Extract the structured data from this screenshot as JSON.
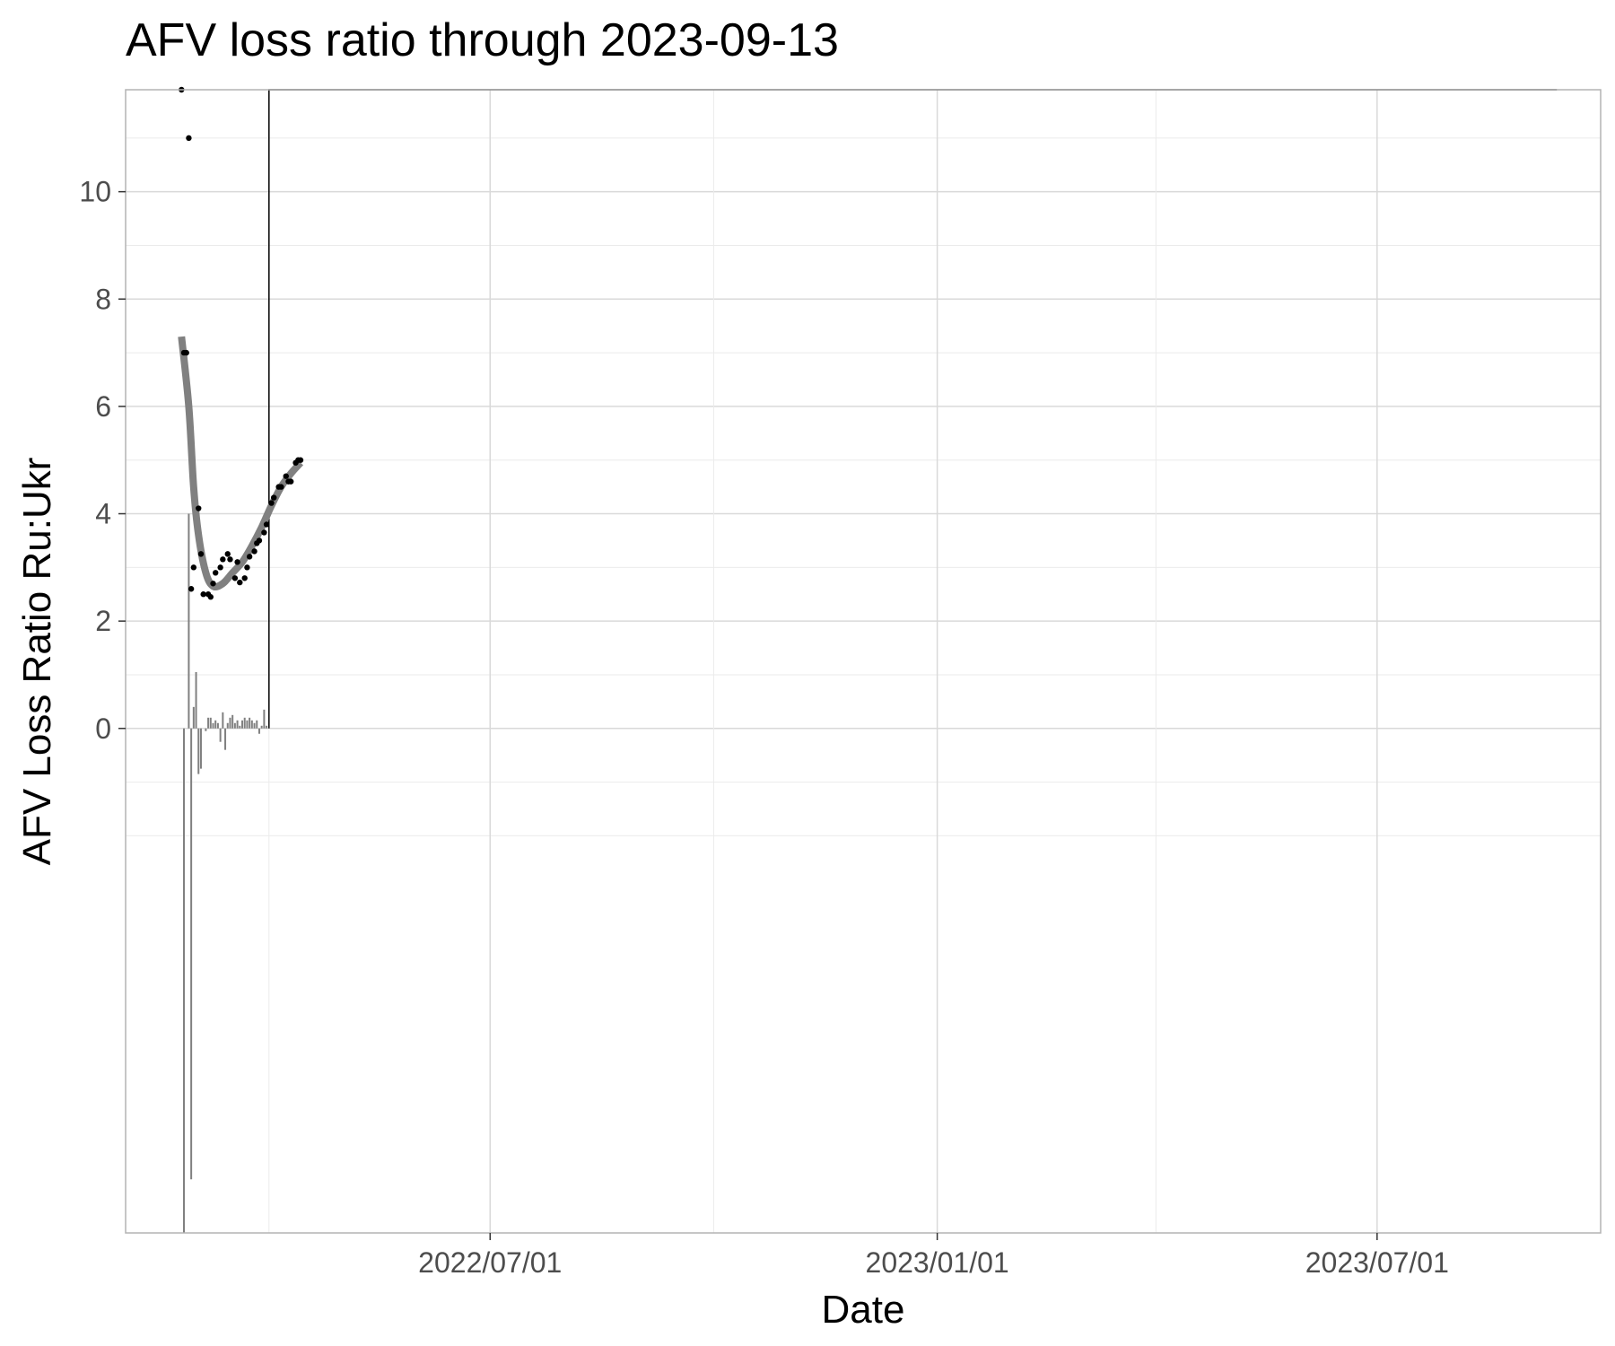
{
  "chart_data": {
    "type": "line",
    "title": "AFV loss ratio through 2023-09-13",
    "xlabel": "Date",
    "ylabel": "AFV Loss Ratio Ru:Ukr",
    "x_axis": {
      "type": "date",
      "range": [
        "2022-02-01",
        "2023-10-01"
      ],
      "ticks": [
        "2022/07/01",
        "2023/01/01",
        "2023/07/01"
      ],
      "tick_dates": [
        "2022-07-01",
        "2023-01-01",
        "2023-07-01"
      ],
      "minor_dates": [
        "2022-04-01",
        "2022-10-01",
        "2023-04-01",
        "2023-10-01"
      ]
    },
    "y_axis": {
      "range": [
        -9.4,
        11.9
      ],
      "ticks": [
        0,
        2,
        4,
        6,
        8,
        10
      ],
      "tick_labels": [
        "0",
        "2",
        "4",
        "6",
        "8",
        "10"
      ],
      "minor_ticks": [
        -2,
        -1,
        1,
        3,
        5,
        7,
        9,
        11
      ]
    },
    "grid": true,
    "legend": "none",
    "series": [
      {
        "kind": "points",
        "color": "#000000",
        "data": [
          [
            "2022-02-24",
            11.9
          ],
          [
            "2022-02-25",
            7.0
          ],
          [
            "2022-02-26",
            7.0
          ],
          [
            "2022-02-27",
            11.0
          ],
          [
            "2022-02-28",
            2.6
          ],
          [
            "2022-03-01",
            3.0
          ],
          [
            "2022-03-03",
            4.1
          ],
          [
            "2022-03-04",
            3.25
          ],
          [
            "2022-03-05",
            2.5
          ],
          [
            "2022-03-07",
            2.5
          ],
          [
            "2022-03-08",
            2.45
          ],
          [
            "2022-03-09",
            2.7
          ],
          [
            "2022-03-10",
            2.9
          ],
          [
            "2022-03-12",
            3.0
          ],
          [
            "2022-03-13",
            3.15
          ],
          [
            "2022-03-15",
            3.25
          ],
          [
            "2022-03-16",
            3.15
          ],
          [
            "2022-03-18",
            2.8
          ],
          [
            "2022-03-19",
            3.1
          ],
          [
            "2022-03-20",
            2.72
          ],
          [
            "2022-03-22",
            2.8
          ],
          [
            "2022-03-23",
            3.0
          ],
          [
            "2022-03-24",
            3.2
          ],
          [
            "2022-03-26",
            3.3
          ],
          [
            "2022-03-27",
            3.45
          ],
          [
            "2022-03-28",
            3.5
          ],
          [
            "2022-03-30",
            3.65
          ],
          [
            "2022-03-31",
            3.8
          ],
          [
            "2022-04-02",
            4.2
          ],
          [
            "2022-04-03",
            4.3
          ],
          [
            "2022-04-05",
            4.5
          ],
          [
            "2022-04-06",
            4.5
          ],
          [
            "2022-04-08",
            4.7
          ],
          [
            "2022-04-09",
            4.6
          ],
          [
            "2022-04-10",
            4.6
          ],
          [
            "2022-04-12",
            4.95
          ],
          [
            "2022-04-13",
            5.0
          ],
          [
            "2022-04-14",
            5.0
          ]
        ]
      },
      {
        "kind": "smooth",
        "color": "#808080",
        "data": [
          [
            "2022-02-24",
            7.3
          ],
          [
            "2022-02-27",
            6.0
          ],
          [
            "2022-03-01",
            4.5
          ],
          [
            "2022-03-03",
            3.6
          ],
          [
            "2022-03-06",
            2.9
          ],
          [
            "2022-03-09",
            2.65
          ],
          [
            "2022-03-13",
            2.7
          ],
          [
            "2022-03-17",
            2.9
          ],
          [
            "2022-03-21",
            3.1
          ],
          [
            "2022-03-25",
            3.4
          ],
          [
            "2022-03-29",
            3.75
          ],
          [
            "2022-04-02",
            4.15
          ],
          [
            "2022-04-06",
            4.5
          ],
          [
            "2022-04-10",
            4.75
          ],
          [
            "2022-04-14",
            4.95
          ]
        ]
      },
      {
        "kind": "bars",
        "color": "#808080",
        "data": [
          [
            "2022-02-25",
            -9.4
          ],
          [
            "2022-02-27",
            4.0
          ],
          [
            "2022-02-28",
            -8.4
          ],
          [
            "2022-03-01",
            0.4
          ],
          [
            "2022-03-02",
            1.05
          ],
          [
            "2022-03-03",
            -0.85
          ],
          [
            "2022-03-04",
            -0.75
          ],
          [
            "2022-03-06",
            -0.05
          ],
          [
            "2022-03-07",
            0.2
          ],
          [
            "2022-03-08",
            0.2
          ],
          [
            "2022-03-09",
            0.1
          ],
          [
            "2022-03-10",
            0.15
          ],
          [
            "2022-03-11",
            0.1
          ],
          [
            "2022-03-12",
            -0.25
          ],
          [
            "2022-03-13",
            0.3
          ],
          [
            "2022-03-14",
            -0.4
          ],
          [
            "2022-03-15",
            0.1
          ],
          [
            "2022-03-16",
            0.2
          ],
          [
            "2022-03-17",
            0.25
          ],
          [
            "2022-03-18",
            0.1
          ],
          [
            "2022-03-19",
            0.15
          ],
          [
            "2022-03-20",
            0.05
          ],
          [
            "2022-03-21",
            0.15
          ],
          [
            "2022-03-22",
            0.2
          ],
          [
            "2022-03-23",
            0.15
          ],
          [
            "2022-03-24",
            0.2
          ],
          [
            "2022-03-25",
            0.15
          ],
          [
            "2022-03-26",
            0.1
          ],
          [
            "2022-03-27",
            0.15
          ],
          [
            "2022-03-28",
            -0.1
          ],
          [
            "2022-03-29",
            0.05
          ],
          [
            "2022-03-30",
            0.35
          ],
          [
            "2022-03-31",
            0.05
          ]
        ]
      },
      {
        "kind": "step",
        "color": "#000000",
        "data": [
          [
            "2022-04-01",
            0.0
          ],
          [
            "2022-04-01",
            11.9
          ],
          [
            "2023-09-13",
            11.9
          ]
        ]
      }
    ]
  }
}
